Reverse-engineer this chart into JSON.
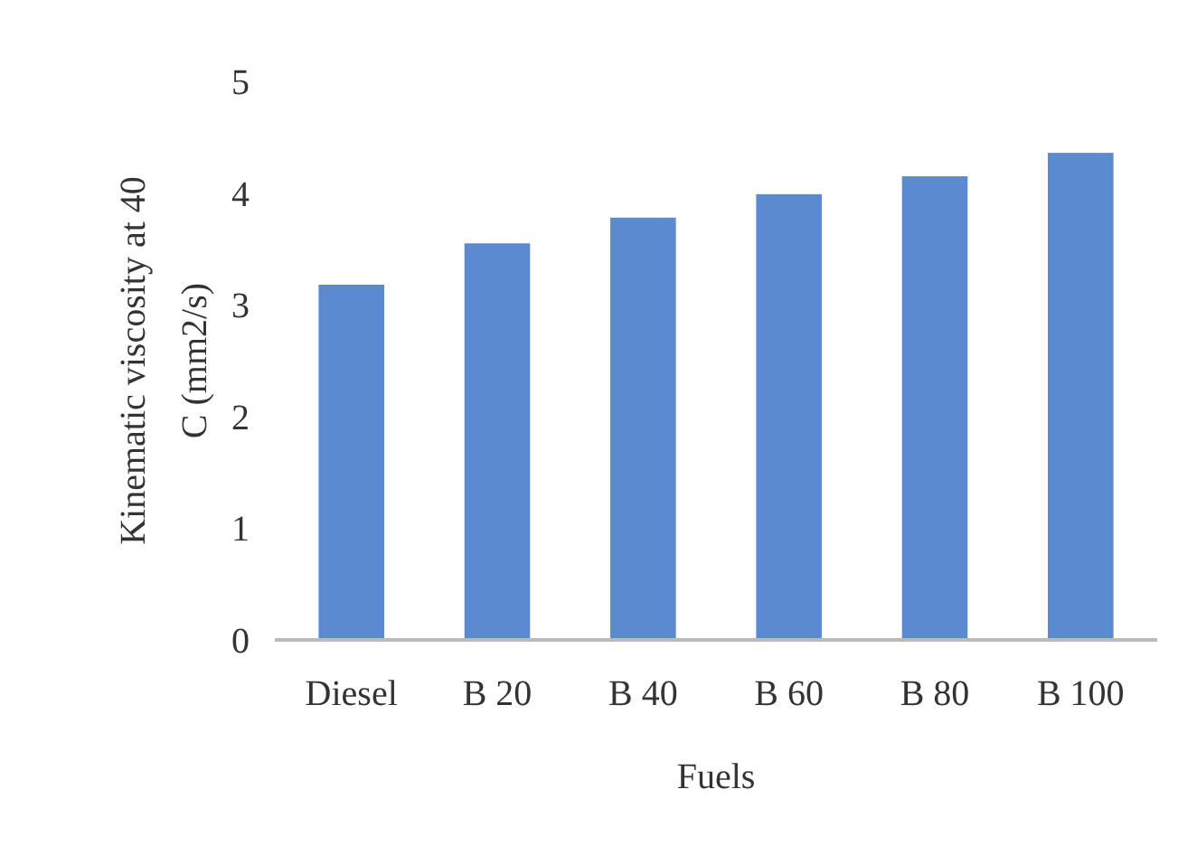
{
  "chart_data": {
    "type": "bar",
    "xlabel": "Fuels",
    "ylabel": "Kinematic viscosity at 40 C (mm2/s)",
    "categories": [
      "Diesel",
      "B 20",
      "B 40",
      "B 60",
      "B 80",
      "B 100"
    ],
    "values": [
      3.18,
      3.55,
      3.78,
      3.99,
      4.15,
      4.36
    ],
    "color": "#5b8ad0",
    "ylim": [
      0,
      5
    ],
    "yticks": [
      0,
      1,
      2,
      3,
      4,
      5
    ],
    "grid": false
  }
}
